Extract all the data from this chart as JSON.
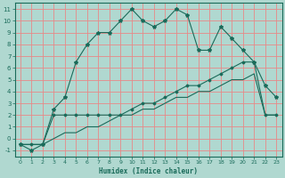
{
  "title": "",
  "xlabel": "Humidex (Indice chaleur)",
  "bg_color": "#b0d8d0",
  "line_color": "#1a6b5a",
  "grid_color": "#e88888",
  "xlim": [
    -0.5,
    23.5
  ],
  "ylim": [
    -1.5,
    11.5
  ],
  "xticks": [
    0,
    1,
    2,
    3,
    4,
    5,
    6,
    7,
    8,
    9,
    10,
    11,
    12,
    13,
    14,
    15,
    16,
    17,
    18,
    19,
    20,
    21,
    22,
    23
  ],
  "yticks": [
    -1,
    0,
    1,
    2,
    3,
    4,
    5,
    6,
    7,
    8,
    9,
    10,
    11
  ],
  "line1_x": [
    0,
    1,
    2,
    3,
    4,
    5,
    6,
    7,
    8,
    9,
    10,
    11,
    12,
    13,
    14,
    15,
    16,
    17,
    18,
    19,
    20,
    21,
    22,
    23
  ],
  "line1_y": [
    -0.5,
    -1,
    -0.5,
    2.5,
    3.5,
    6.5,
    8,
    9,
    9,
    10,
    11,
    10,
    9.5,
    10,
    11,
    10.5,
    7.5,
    7.5,
    9.5,
    8.5,
    7.5,
    6.5,
    4.5,
    3.5
  ],
  "line2_x": [
    0,
    1,
    2,
    3,
    4,
    5,
    6,
    7,
    8,
    9,
    10,
    11,
    12,
    13,
    14,
    15,
    16,
    17,
    18,
    19,
    20,
    21,
    22,
    23
  ],
  "line2_y": [
    -0.5,
    -0.5,
    -0.5,
    2,
    2,
    2,
    2,
    2,
    2,
    2,
    2.5,
    3,
    3,
    3.5,
    4,
    4.5,
    4.5,
    5,
    5.5,
    6,
    6.5,
    6.5,
    2,
    2
  ],
  "line3_x": [
    0,
    1,
    2,
    3,
    4,
    5,
    6,
    7,
    8,
    9,
    10,
    11,
    12,
    13,
    14,
    15,
    16,
    17,
    18,
    19,
    20,
    21,
    22,
    23
  ],
  "line3_y": [
    -0.5,
    -0.5,
    -0.5,
    0,
    0.5,
    0.5,
    1,
    1,
    1.5,
    2,
    2,
    2.5,
    2.5,
    3,
    3.5,
    3.5,
    4,
    4,
    4.5,
    5,
    5,
    5.5,
    2,
    2
  ]
}
